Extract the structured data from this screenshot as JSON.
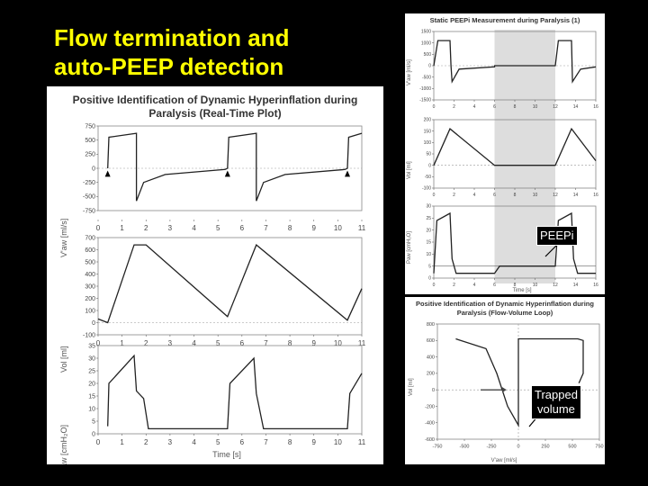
{
  "slide": {
    "title": "Flow termination and\nauto-PEEP detection"
  },
  "left_panel": {
    "title_line1": "Positive Identification of Dynamic Hyperinflation during",
    "title_line2": "Paralysis (Real-Time Plot)",
    "ylabel_flow": "V'aw [ml/s]",
    "ylabel_vol": "Vol [ml]",
    "ylabel_paw": "Paw [cmH₂O]",
    "xlabel": "Time [s]",
    "flow_ticks": [
      "750",
      "500",
      "250",
      "0",
      "-250",
      "-500",
      "-750"
    ],
    "vol_ticks": [
      "700",
      "600",
      "500",
      "400",
      "300",
      "200",
      "100",
      "0",
      "-100"
    ],
    "paw_ticks": [
      "35",
      "30",
      "25",
      "20",
      "15",
      "10",
      "5",
      "0"
    ],
    "x_ticks": [
      "0",
      "1",
      "2",
      "3",
      "4",
      "5",
      "6",
      "7",
      "8",
      "9",
      "10",
      "11"
    ]
  },
  "right_top_panel": {
    "title": "Static PEEPi Measurement during Paralysis (1)",
    "ylabel_flow": "V'aw [ml/s]",
    "ylabel_vol": "Vol [ml]",
    "ylabel_paw": "Paw [cmH₂O]",
    "xlabel": "Time [s]",
    "flow_ticks": [
      "1500",
      "1000",
      "500",
      "0",
      "-500",
      "-1000",
      "-1500"
    ],
    "vol_ticks": [
      "200",
      "150",
      "100",
      "50",
      "0",
      "-50",
      "-100"
    ],
    "paw_ticks": [
      "30",
      "25",
      "20",
      "15",
      "10",
      "5",
      "0"
    ],
    "x_ticks": [
      "0",
      "2",
      "4",
      "6",
      "8",
      "10",
      "12",
      "14",
      "16"
    ],
    "callout": "PEEPi"
  },
  "right_bottom_panel": {
    "title_line1": "Positive Identification of Dynamic Hyperinflation during",
    "title_line2": "Paralysis (Flow-Volume Loop)",
    "ylabel": "Vol [ml]",
    "xlabel": "V'aw [ml/s]",
    "y_ticks": [
      "800",
      "600",
      "400",
      "200",
      "0",
      "-200",
      "-400",
      "-600"
    ],
    "x_ticks": [
      "-750",
      "-500",
      "-250",
      "0",
      "250",
      "500",
      "750"
    ],
    "callout": "Trapped\nvolume"
  },
  "colors": {
    "title": "#ffff00",
    "background": "#000000",
    "panel": "#ffffff",
    "trace": "#222222"
  }
}
